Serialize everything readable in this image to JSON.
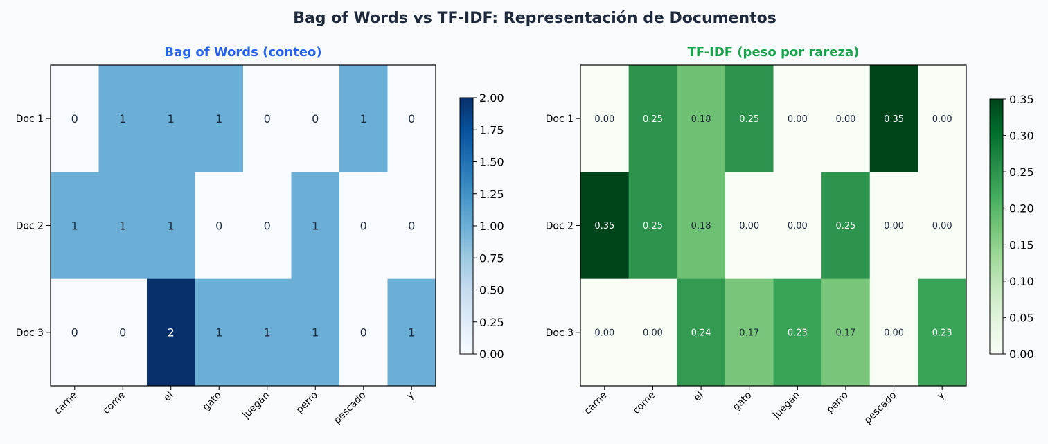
{
  "title": "Bag of Words vs TF-IDF: Representación de Documentos",
  "chart_data": [
    {
      "type": "heatmap",
      "title": "Bag of Words (conteo)",
      "title_color": "#2563eb",
      "colormap": "Blues",
      "rows": [
        "Doc 1",
        "Doc 2",
        "Doc 3"
      ],
      "columns": [
        "carne",
        "come",
        "el",
        "gato",
        "juegan",
        "perro",
        "pescado",
        "y"
      ],
      "values": [
        [
          0,
          1,
          1,
          1,
          0,
          0,
          1,
          0
        ],
        [
          1,
          1,
          1,
          0,
          0,
          1,
          0,
          0
        ],
        [
          0,
          0,
          2,
          1,
          1,
          1,
          0,
          1
        ]
      ],
      "value_labels": [
        [
          "0",
          "1",
          "1",
          "1",
          "0",
          "0",
          "1",
          "0"
        ],
        [
          "1",
          "1",
          "1",
          "0",
          "0",
          "1",
          "0",
          "0"
        ],
        [
          "0",
          "0",
          "2",
          "1",
          "1",
          "1",
          "0",
          "1"
        ]
      ],
      "colorbar": {
        "range": [
          0,
          2
        ],
        "ticks": [
          "0.00",
          "0.25",
          "0.50",
          "0.75",
          "1.00",
          "1.25",
          "1.50",
          "1.75",
          "2.00"
        ]
      }
    },
    {
      "type": "heatmap",
      "title": "TF-IDF (peso por rareza)",
      "title_color": "#16a34a",
      "colormap": "Greens",
      "rows": [
        "Doc 1",
        "Doc 2",
        "Doc 3"
      ],
      "columns": [
        "carne",
        "come",
        "el",
        "gato",
        "juegan",
        "perro",
        "pescado",
        "y"
      ],
      "values": [
        [
          0.0,
          0.25,
          0.18,
          0.25,
          0.0,
          0.0,
          0.35,
          0.0
        ],
        [
          0.35,
          0.25,
          0.18,
          0.0,
          0.0,
          0.25,
          0.0,
          0.0
        ],
        [
          0.0,
          0.0,
          0.24,
          0.17,
          0.23,
          0.17,
          0.0,
          0.23
        ]
      ],
      "value_labels": [
        [
          "0.00",
          "0.25",
          "0.18",
          "0.25",
          "0.00",
          "0.00",
          "0.35",
          "0.00"
        ],
        [
          "0.35",
          "0.25",
          "0.18",
          "0.00",
          "0.00",
          "0.25",
          "0.00",
          "0.00"
        ],
        [
          "0.00",
          "0.00",
          "0.24",
          "0.17",
          "0.23",
          "0.17",
          "0.00",
          "0.23"
        ]
      ],
      "colorbar": {
        "range": [
          0,
          0.35
        ],
        "ticks": [
          "0.00",
          "0.05",
          "0.10",
          "0.15",
          "0.20",
          "0.25",
          "0.30",
          "0.35"
        ]
      }
    }
  ]
}
